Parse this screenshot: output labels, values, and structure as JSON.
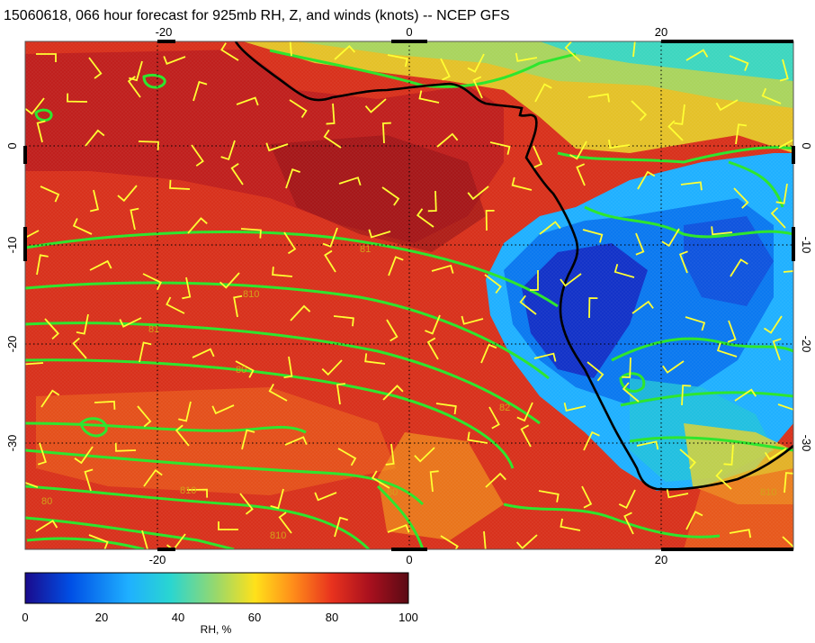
{
  "title": "15060618, 066 hour forecast for 925mb RH, Z, and winds (knots) -- NCEP GFS",
  "axes": {
    "lon_ticks": [
      "-20",
      "0",
      "20"
    ],
    "lat_ticks_left": [
      "0",
      "-10",
      "-20",
      "-30"
    ],
    "lat_ticks_right": [
      "0",
      "-10",
      "-20",
      "-30"
    ]
  },
  "colorbar": {
    "label": "RH, %",
    "ticks": [
      "0",
      "20",
      "40",
      "60",
      "80",
      "100"
    ],
    "colors": [
      "#1a0a8c",
      "#0050e6",
      "#1fb0ff",
      "#2ad6d0",
      "#9ad86a",
      "#ffe11a",
      "#ff8c1a",
      "#e8321e",
      "#a8101e",
      "#5a0a14"
    ]
  },
  "map": {
    "contour_color": "#2ee62e",
    "coastline_color": "#000000",
    "barb_color": "#ffff33",
    "contour_labels": [
      "810",
      "81",
      "80",
      "82",
      "810",
      "810",
      "80",
      "80",
      "81",
      "810"
    ]
  }
}
